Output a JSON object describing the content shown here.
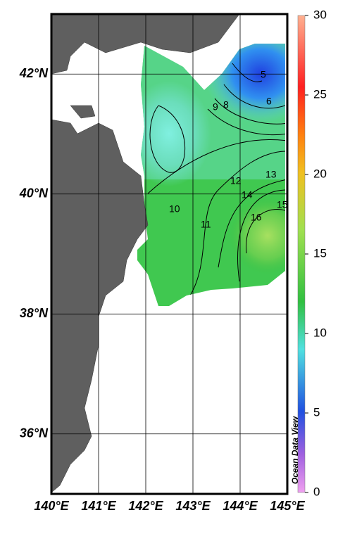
{
  "map": {
    "xlim": [
      140,
      145
    ],
    "ylim": [
      35,
      43
    ],
    "xticks": [
      {
        "value": 140,
        "label": "140°E"
      },
      {
        "value": 141,
        "label": "141°E"
      },
      {
        "value": 142,
        "label": "142°E"
      },
      {
        "value": 143,
        "label": "143°E"
      },
      {
        "value": 144,
        "label": "144°E"
      },
      {
        "value": 145,
        "label": "145°E"
      }
    ],
    "yticks": [
      {
        "value": 36,
        "label": "36°N"
      },
      {
        "value": 38,
        "label": "38°N"
      },
      {
        "value": 40,
        "label": "40°N"
      },
      {
        "value": 42,
        "label": "42°N"
      }
    ],
    "grid": true,
    "colorbar": {
      "range": [
        0,
        30
      ],
      "ticks": [
        0,
        5,
        10,
        15,
        20,
        25,
        30
      ]
    },
    "contour_labels": [
      5,
      6,
      8,
      9,
      10,
      11,
      12,
      13,
      14,
      15,
      16
    ],
    "credit": "Ocean Data View"
  }
}
